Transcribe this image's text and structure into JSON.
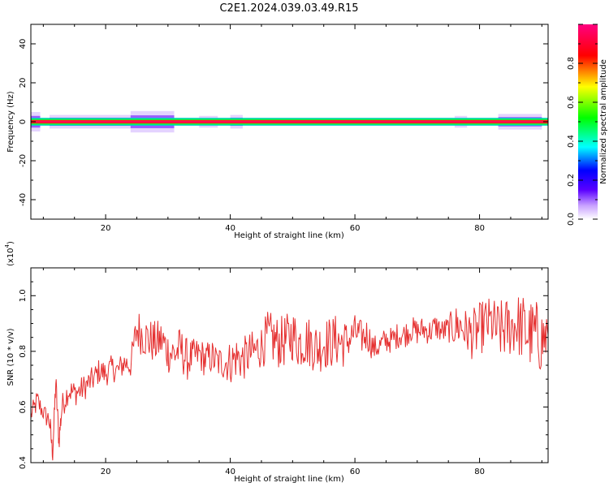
{
  "title": "C2E1.2024.039.03.49.R15",
  "chart_data": [
    {
      "type": "heatmap",
      "name": "spectrogram",
      "xlabel": "Height of straight line (km)",
      "ylabel": "Frequency (Hz)",
      "xlim": [
        8,
        91
      ],
      "ylim": [
        -50,
        50
      ],
      "x_ticks": [
        20,
        40,
        60,
        80
      ],
      "y_ticks": [
        -40,
        -20,
        0,
        20,
        40
      ],
      "colorbar": {
        "label": "Normalized spectral amplitude",
        "range": [
          0,
          1
        ],
        "ticks": [
          "0.0",
          "0.2",
          "0.4",
          "0.6",
          "0.8"
        ],
        "colors": [
          "#ffffff",
          "#c8a0ff",
          "#5a00ff",
          "#0000ff",
          "#00ffff",
          "#00ff00",
          "#ffff00",
          "#ff0000",
          "#ff00a0"
        ]
      },
      "band": {
        "center_hz": 0,
        "half_width_hz": 2
      },
      "halo_segments": [
        {
          "x": [
            8,
            9.5
          ],
          "half_width_hz": 5
        },
        {
          "x": [
            11,
            24
          ],
          "half_width_hz": 3.5
        },
        {
          "x": [
            24,
            31
          ],
          "half_width_hz": 5.5
        },
        {
          "x": [
            35,
            38
          ],
          "half_width_hz": 3
        },
        {
          "x": [
            40,
            42
          ],
          "half_width_hz": 3.5
        },
        {
          "x": [
            76,
            78
          ],
          "half_width_hz": 3
        },
        {
          "x": [
            83,
            90
          ],
          "half_width_hz": 4
        }
      ]
    },
    {
      "type": "line",
      "name": "snr",
      "xlabel": "Height of straight line (km)",
      "ylabel": "SNR (10 * v/v)",
      "scale_label": "(x10",
      "scale_exp": "4",
      "scale_close": ")",
      "xlim": [
        8,
        91
      ],
      "ylim": [
        0.4,
        1.1
      ],
      "x_ticks": [
        20,
        40,
        60,
        80
      ],
      "y_ticks": [
        "0.4",
        "0.6",
        "0.8",
        "1.0"
      ],
      "color": "#e53030",
      "series": [
        {
          "x": [
            8,
            9,
            10,
            11,
            11.5,
            12,
            12.5,
            13,
            14,
            15,
            16,
            17,
            18,
            19,
            20,
            21,
            22,
            23,
            24,
            25,
            26,
            27,
            28,
            29,
            30,
            31,
            32,
            33,
            34,
            35,
            36,
            37,
            38,
            39,
            40,
            41,
            42,
            43,
            44,
            45,
            46,
            47,
            48,
            49,
            50,
            51,
            52,
            53,
            54,
            55,
            56,
            57,
            58,
            59,
            60,
            61,
            62,
            63,
            64,
            65,
            66,
            67,
            68,
            69,
            70,
            71,
            72,
            73,
            74,
            75,
            76,
            77,
            78,
            79,
            80,
            81,
            82,
            83,
            84,
            85,
            86,
            87,
            88,
            89,
            90,
            91
          ],
          "y": [
            0.57,
            0.62,
            0.58,
            0.55,
            0.43,
            0.69,
            0.48,
            0.6,
            0.66,
            0.65,
            0.66,
            0.68,
            0.7,
            0.73,
            0.72,
            0.74,
            0.73,
            0.76,
            0.75,
            0.88,
            0.86,
            0.84,
            0.83,
            0.84,
            0.8,
            0.79,
            0.81,
            0.77,
            0.78,
            0.79,
            0.77,
            0.78,
            0.76,
            0.76,
            0.76,
            0.78,
            0.77,
            0.79,
            0.8,
            0.82,
            0.85,
            0.84,
            0.83,
            0.84,
            0.86,
            0.83,
            0.84,
            0.83,
            0.81,
            0.83,
            0.83,
            0.84,
            0.83,
            0.84,
            0.87,
            0.85,
            0.86,
            0.81,
            0.82,
            0.84,
            0.84,
            0.86,
            0.86,
            0.88,
            0.87,
            0.88,
            0.87,
            0.89,
            0.87,
            0.88,
            0.89,
            0.89,
            0.87,
            0.86,
            0.88,
            0.9,
            0.9,
            0.87,
            0.88,
            0.89,
            0.9,
            0.88,
            0.86,
            0.86,
            0.84,
            0.86
          ],
          "noise": [
            0.02,
            0.03,
            0.02,
            0.03,
            0.02,
            0.03,
            0.03,
            0.03,
            0.03,
            0.03,
            0.03,
            0.03,
            0.03,
            0.03,
            0.03,
            0.03,
            0.03,
            0.03,
            0.03,
            0.05,
            0.05,
            0.05,
            0.05,
            0.05,
            0.05,
            0.05,
            0.05,
            0.05,
            0.04,
            0.04,
            0.04,
            0.04,
            0.04,
            0.04,
            0.05,
            0.05,
            0.05,
            0.05,
            0.05,
            0.05,
            0.06,
            0.06,
            0.06,
            0.06,
            0.06,
            0.06,
            0.06,
            0.06,
            0.06,
            0.06,
            0.06,
            0.06,
            0.06,
            0.04,
            0.04,
            0.04,
            0.04,
            0.03,
            0.03,
            0.03,
            0.03,
            0.03,
            0.03,
            0.03,
            0.03,
            0.03,
            0.03,
            0.03,
            0.03,
            0.03,
            0.05,
            0.05,
            0.05,
            0.06,
            0.06,
            0.06,
            0.06,
            0.07,
            0.07,
            0.07,
            0.07,
            0.08,
            0.08,
            0.08,
            0.08,
            0.08
          ]
        }
      ]
    }
  ]
}
